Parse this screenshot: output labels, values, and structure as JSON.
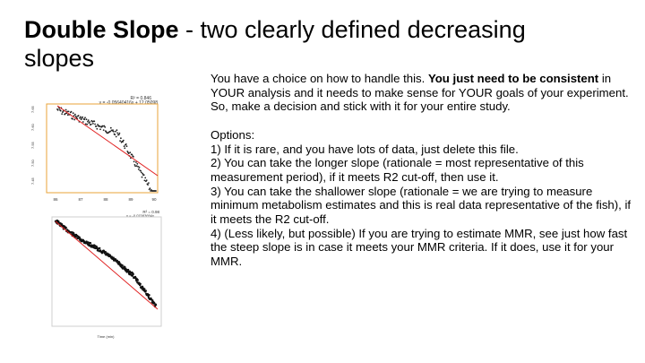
{
  "title": {
    "bold": "Double Slope",
    "rest": " - two clearly defined decreasing slopes"
  },
  "body": {
    "intro_plain": "You have a choice on how to handle this. ",
    "intro_bold": "You just need to be consistent",
    "intro_rest": " in YOUR analysis and it needs to make sense for YOUR goals of your experiment. So, make a decision and stick with it for your entire study.",
    "options_heading": "Options:",
    "options": [
      "1) If it is rare, and you have lots of data, just delete this file.",
      "2) You can take the longer slope (rationale = most representative of this measurement period), if it meets R2 cut-off, then use it.",
      "3) You can take the shallower slope (rationale = we are trying to measure minimum metabolism estimates and this is real data representative of the fish), if it meets the R2 cut-off.",
      "4) (Less likely, but possible) If you are trying to estimate MMR, see just how fast the steep slope is in case it meets your MMR criteria. If it does, use it for your MMR."
    ]
  },
  "plot1": {
    "r2_label": "R² = 0.846",
    "equation": "y = -0.05640416x + 12.05098",
    "x_ticks": [
      "86",
      "87",
      "88",
      "89",
      "90"
    ],
    "y_ticks": [
      "7.65",
      "7.60",
      "7.55",
      "7.50",
      "7.45"
    ],
    "frame_color": "#e8a33a",
    "fit_color": "#e02020"
  },
  "plot2": {
    "equation": "y = -0.07083694x",
    "r2_label": "R² = 0.98",
    "x_label": "Time (min)",
    "fit_color": "#e02020"
  }
}
